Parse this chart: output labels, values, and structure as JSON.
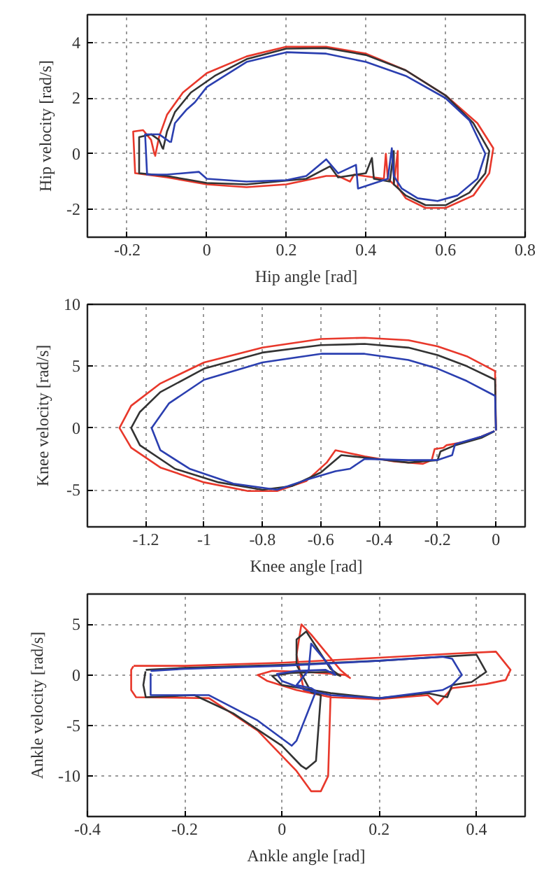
{
  "chart_data": [
    {
      "type": "line",
      "xlabel": "Hip angle [rad]",
      "ylabel": "Hip velocity [rad/s]",
      "xlim": [
        -0.3,
        0.8
      ],
      "ylim": [
        -3,
        5
      ],
      "xticks": [
        -0.2,
        0,
        0.2,
        0.4,
        0.6,
        0.8
      ],
      "yticks": [
        -2,
        0,
        2,
        4
      ],
      "grid": true,
      "line_style": "solid",
      "series": [
        {
          "color": "#e8382b",
          "x": [
            -0.13,
            -0.12,
            -0.1,
            -0.06,
            0,
            0.1,
            0.2,
            0.3,
            0.4,
            0.5,
            0.6,
            0.68,
            0.72,
            0.71,
            0.67,
            0.6,
            0.55,
            0.5,
            0.48,
            0.48,
            0.47,
            0.455,
            0.45,
            0.445,
            0.37,
            0.36,
            0.33,
            0.3,
            0.2,
            0.1,
            0,
            -0.1,
            -0.18,
            -0.185,
            -0.16,
            -0.14,
            -0.131
          ],
          "values": [
            -0.1,
            0.6,
            1.4,
            2.2,
            2.9,
            3.5,
            3.85,
            3.85,
            3.6,
            3.0,
            2.1,
            1.1,
            0.2,
            -0.7,
            -1.5,
            -1.95,
            -1.95,
            -1.6,
            -1.2,
            0.1,
            -1.1,
            -0.9,
            0,
            -0.9,
            -0.75,
            -1.0,
            -0.8,
            -0.8,
            -1.1,
            -1.2,
            -1.1,
            -0.85,
            -0.7,
            0.8,
            0.85,
            0.5,
            -0.04
          ]
        },
        {
          "color": "#333333",
          "x": [
            -0.11,
            -0.1,
            -0.08,
            -0.04,
            0.02,
            0.1,
            0.2,
            0.3,
            0.4,
            0.5,
            0.6,
            0.67,
            0.71,
            0.7,
            0.66,
            0.6,
            0.55,
            0.5,
            0.47,
            0.47,
            0.46,
            0.42,
            0.415,
            0.4,
            0.33,
            0.31,
            0.25,
            0.1,
            0,
            -0.1,
            -0.17,
            -0.17,
            -0.14,
            -0.12,
            -0.111
          ],
          "values": [
            0.15,
            0.8,
            1.5,
            2.2,
            2.8,
            3.4,
            3.78,
            3.8,
            3.55,
            3.0,
            2.1,
            1.1,
            0.1,
            -0.7,
            -1.4,
            -1.85,
            -1.85,
            -1.5,
            -1.1,
            0.1,
            -1.0,
            -0.9,
            -0.15,
            -0.7,
            -0.85,
            -0.45,
            -0.9,
            -1.1,
            -1.05,
            -0.8,
            -0.7,
            0.6,
            0.7,
            0.5,
            0.19
          ]
        },
        {
          "color": "#2b3fb0",
          "x": [
            -0.09,
            -0.08,
            -0.05,
            -0.03,
            0,
            0.1,
            0.2,
            0.3,
            0.4,
            0.5,
            0.6,
            0.66,
            0.7,
            0.68,
            0.63,
            0.58,
            0.53,
            0.49,
            0.47,
            0.465,
            0.455,
            0.38,
            0.375,
            0.33,
            0.3,
            0.25,
            0.2,
            0.1,
            0,
            -0.02,
            -0.1,
            -0.15,
            -0.155,
            -0.12,
            -0.1,
            -0.091
          ],
          "values": [
            0.4,
            1.1,
            1.6,
            1.85,
            2.4,
            3.3,
            3.65,
            3.6,
            3.3,
            2.8,
            2.0,
            1.2,
            0,
            -0.9,
            -1.5,
            -1.7,
            -1.6,
            -1.25,
            -0.8,
            0.2,
            -0.9,
            -1.25,
            -0.4,
            -0.7,
            -0.2,
            -0.8,
            -0.95,
            -1.0,
            -0.9,
            -0.65,
            -0.75,
            -0.75,
            0.7,
            0.7,
            0.5,
            0.41
          ]
        }
      ]
    },
    {
      "type": "line",
      "xlabel": "Knee angle [rad]",
      "ylabel": "Knee velocity [rad/s]",
      "xlim": [
        -1.4,
        0.1
      ],
      "ylim": [
        -8,
        10
      ],
      "xticks": [
        -1.2,
        -1,
        -0.8,
        -0.6,
        -0.4,
        -0.2,
        0
      ],
      "yticks": [
        -5,
        0,
        5,
        10
      ],
      "grid": true,
      "line_style": "solid",
      "series": [
        {
          "color": "#e8382b",
          "x": [
            0,
            -0.003,
            -0.1,
            -0.2,
            -0.3,
            -0.45,
            -0.6,
            -0.8,
            -1.0,
            -1.15,
            -1.25,
            -1.29,
            -1.25,
            -1.15,
            -1.0,
            -0.85,
            -0.75,
            -0.65,
            -0.58,
            -0.55,
            -0.45,
            -0.35,
            -0.25,
            -0.22,
            -0.21,
            -0.18,
            -0.17,
            -0.1,
            -0.05,
            -0.005
          ],
          "values": [
            -0.2,
            4.6,
            5.8,
            6.6,
            7.1,
            7.3,
            7.2,
            6.5,
            5.3,
            3.6,
            1.8,
            0,
            -1.6,
            -3.2,
            -4.4,
            -5.1,
            -5.1,
            -4.3,
            -2.8,
            -1.8,
            -2.3,
            -2.7,
            -2.9,
            -2.6,
            -1.7,
            -1.6,
            -1.4,
            -1.1,
            -0.7,
            -0.25
          ]
        },
        {
          "color": "#333333",
          "x": [
            0,
            -0.003,
            -0.1,
            -0.2,
            -0.3,
            -0.45,
            -0.6,
            -0.8,
            -1.0,
            -1.15,
            -1.22,
            -1.25,
            -1.22,
            -1.1,
            -0.95,
            -0.8,
            -0.7,
            -0.6,
            -0.53,
            -0.45,
            -0.3,
            -0.2,
            -0.19,
            -0.14,
            -0.05,
            -0.005
          ],
          "values": [
            -0.2,
            3.9,
            5.0,
            5.9,
            6.5,
            6.8,
            6.7,
            6.1,
            4.8,
            2.9,
            1.3,
            0,
            -1.4,
            -3.3,
            -4.4,
            -5.0,
            -4.7,
            -3.6,
            -2.2,
            -2.4,
            -2.8,
            -2.6,
            -1.9,
            -1.4,
            -0.8,
            -0.26
          ]
        },
        {
          "color": "#2b3fb0",
          "x": [
            0,
            -0.003,
            -0.1,
            -0.2,
            -0.3,
            -0.45,
            -0.6,
            -0.8,
            -1.0,
            -1.12,
            -1.18,
            -1.15,
            -1.05,
            -0.9,
            -0.75,
            -0.65,
            -0.55,
            -0.5,
            -0.45,
            -0.3,
            -0.2,
            -0.15,
            -0.14,
            -0.05,
            -0.005
          ],
          "values": [
            -0.2,
            2.6,
            3.8,
            4.8,
            5.5,
            6.0,
            6.0,
            5.3,
            3.9,
            2.0,
            0,
            -1.8,
            -3.3,
            -4.5,
            -5.0,
            -4.2,
            -3.5,
            -3.3,
            -2.5,
            -2.6,
            -2.6,
            -2.2,
            -1.3,
            -0.7,
            -0.25
          ]
        }
      ]
    },
    {
      "type": "line",
      "xlabel": "Ankle angle [rad]",
      "ylabel": "Ankle velocity [rad/s]",
      "xlim": [
        -0.4,
        0.5
      ],
      "ylim": [
        -14,
        8
      ],
      "xticks": [
        -0.4,
        -0.2,
        0,
        0.2,
        0.4
      ],
      "yticks": [
        -10,
        -5,
        0,
        5
      ],
      "grid": true,
      "line_style": "solid",
      "series": [
        {
          "color": "#e8382b",
          "x": [
            -0.305,
            -0.2,
            0,
            0.2,
            0.35,
            0.44,
            0.47,
            0.46,
            0.42,
            0.35,
            0.32,
            0.3,
            0.2,
            0.1,
            0.03,
            -0.03,
            -0.05,
            -0.02,
            0.05,
            0.13,
            0.14,
            0.12,
            0.06,
            0.04,
            0.03,
            0.045,
            0.1,
            0.095,
            0.08,
            0.06,
            0.03,
            -0.05,
            -0.15,
            -0.3,
            -0.31,
            -0.31,
            -0.3055
          ],
          "values": [
            0.9,
            0.9,
            1.2,
            1.7,
            2.1,
            2.3,
            0.5,
            -0.5,
            -0.9,
            -1.3,
            -2.9,
            -2.0,
            -2.4,
            -2.2,
            -1.5,
            -0.6,
            0,
            0.4,
            0.3,
            0,
            -0.3,
            0.5,
            4.0,
            5.0,
            2.0,
            -1.5,
            -2.0,
            -10,
            -11.5,
            -11.5,
            -9.5,
            -5.5,
            -2.3,
            -2.2,
            -1.5,
            0.5,
            0.86
          ]
        },
        {
          "color": "#333333",
          "x": [
            -0.28,
            -0.2,
            0,
            0.2,
            0.33,
            0.4,
            0.42,
            0.39,
            0.35,
            0.34,
            0.3,
            0.2,
            0.1,
            0,
            -0.02,
            0.02,
            0.1,
            0.12,
            0.1,
            0.05,
            0.03,
            0.03,
            0.06,
            0.08,
            0.07,
            0.05,
            0.04,
            0,
            -0.1,
            -0.18,
            -0.28,
            -0.285,
            -0.2805
          ],
          "values": [
            0.5,
            0.7,
            1.0,
            1.4,
            1.8,
            2.0,
            0.3,
            -0.7,
            -1.0,
            -2.2,
            -1.8,
            -2.3,
            -1.8,
            -1.0,
            -0.1,
            0.2,
            0.3,
            -0.1,
            0.6,
            4.3,
            3.5,
            1.0,
            -1.7,
            -2.0,
            -8.5,
            -9.3,
            -9.0,
            -7.0,
            -3.8,
            -2.0,
            -2.2,
            -1.0,
            0.35
          ]
        },
        {
          "color": "#2b3fb0",
          "x": [
            -0.27,
            -0.2,
            0,
            0.2,
            0.33,
            0.35,
            0.37,
            0.35,
            0.33,
            0.2,
            0.1,
            0.05,
            0,
            -0.01,
            0.03,
            0.09,
            0.11,
            0.1,
            0.06,
            0.055,
            0.03,
            0.06,
            0.07,
            0.03,
            0.02,
            -0.05,
            -0.15,
            -0.27,
            -0.27
          ],
          "values": [
            0.4,
            0.6,
            0.9,
            1.4,
            1.8,
            1.6,
            0,
            -1.0,
            -1.5,
            -2.3,
            -2.0,
            -1.5,
            -0.6,
            0.1,
            0.4,
            0.5,
            0,
            0.8,
            3.1,
            0.5,
            -1.0,
            -1.3,
            -1.6,
            -6.5,
            -7.0,
            -4.5,
            -2.0,
            -2.0,
            0.16
          ]
        }
      ]
    }
  ]
}
